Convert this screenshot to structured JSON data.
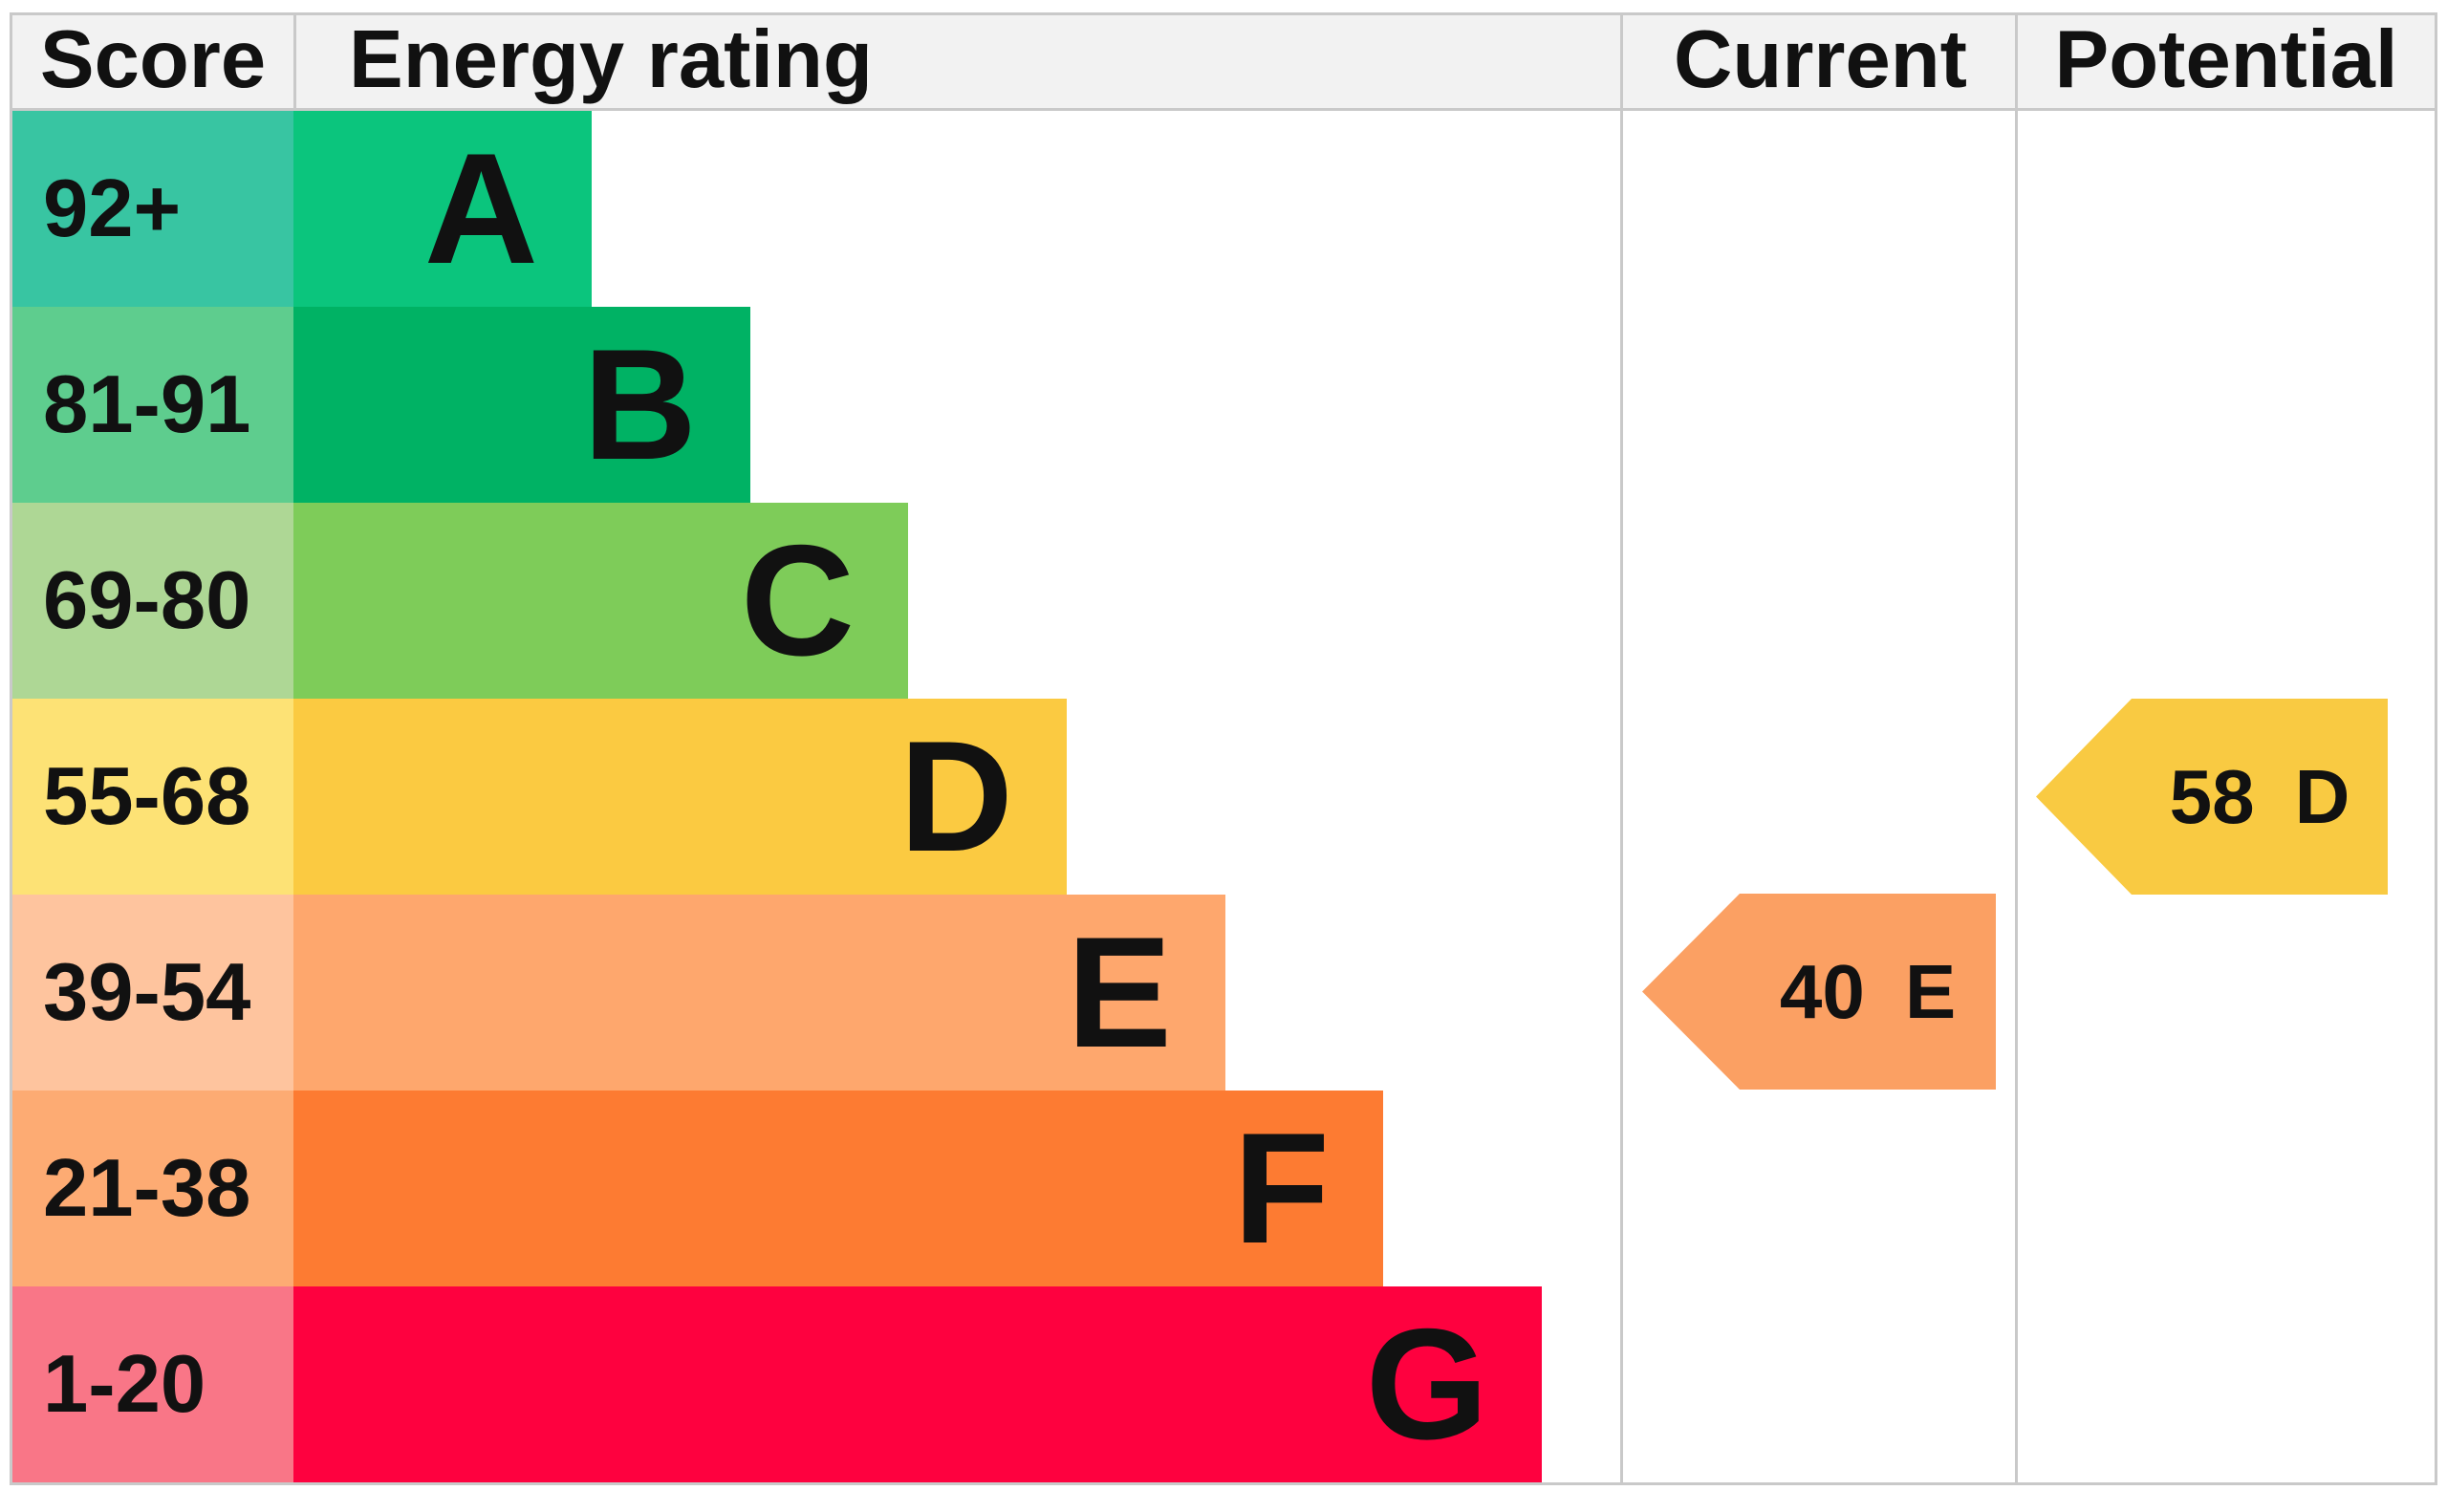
{
  "header": {
    "score": "Score",
    "energy_rating": "Energy rating",
    "current": "Current",
    "potential": "Potential"
  },
  "colors": {
    "grid_line": "#c9c9c9",
    "header_background": "#f2f2f2",
    "text": "#111111"
  },
  "chart_data": {
    "type": "bar",
    "orientation": "horizontal",
    "columns": [
      "Score",
      "Energy rating",
      "Current",
      "Potential"
    ],
    "categories": [
      "A",
      "B",
      "C",
      "D",
      "E",
      "F",
      "G"
    ],
    "bands": [
      {
        "letter": "A",
        "score_range": "92+",
        "bar_color": "#0bc57d",
        "score_cell_color": "#38c5a2"
      },
      {
        "letter": "B",
        "score_range": "81-91",
        "bar_color": "#00b264",
        "score_cell_color": "#5ecd8e"
      },
      {
        "letter": "C",
        "score_range": "69-80",
        "bar_color": "#7ecc59",
        "score_cell_color": "#aed795"
      },
      {
        "letter": "D",
        "score_range": "55-68",
        "bar_color": "#fbca41",
        "score_cell_color": "#fde275"
      },
      {
        "letter": "E",
        "score_range": "39-54",
        "bar_color": "#fea76d",
        "score_cell_color": "#fec49e"
      },
      {
        "letter": "F",
        "score_range": "21-38",
        "bar_color": "#fd7b32",
        "score_cell_color": "#fdab73"
      },
      {
        "letter": "G",
        "score_range": "1-20",
        "bar_color": "#fe013f",
        "score_cell_color": "#f97687"
      }
    ],
    "current": {
      "value": 40,
      "band": "E",
      "color": "#fba063"
    },
    "potential": {
      "value": 58,
      "band": "D",
      "color": "#f9ca42"
    },
    "layout": {
      "grid": "off",
      "legend": "none",
      "bar_lengths_encode": "band order A shortest to G longest"
    }
  }
}
